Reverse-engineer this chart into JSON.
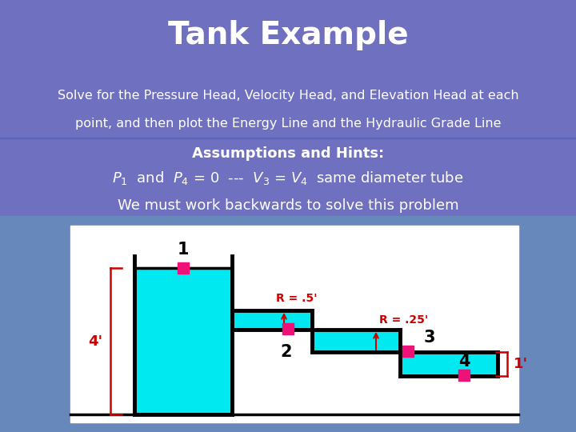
{
  "title": "Tank Example",
  "subtitle_line1": "Solve for the Pressure Head, Velocity Head, and Elevation Head at each",
  "subtitle_line2": "point, and then plot the Energy Line and the Hydraulic Grade Line",
  "assumption_line1": "Assumptions and Hints:",
  "assumption_line2": "P_1 and P_4 = 0 --- V_3 = V_4 same diameter tube",
  "assumption_line3": "We must work backwards to solve this problem",
  "title_bg": "#7070c0",
  "header_bg": "#1a3a8a",
  "water_color": "#00e8f0",
  "tank_lw": 2.5,
  "dim_color": "#cc0000",
  "point_color": "#ee1177",
  "bg_side_color": "#6688bb",
  "white_bg": "#ffffff",
  "text_white": "#ffffff",
  "text_black": "#000000"
}
